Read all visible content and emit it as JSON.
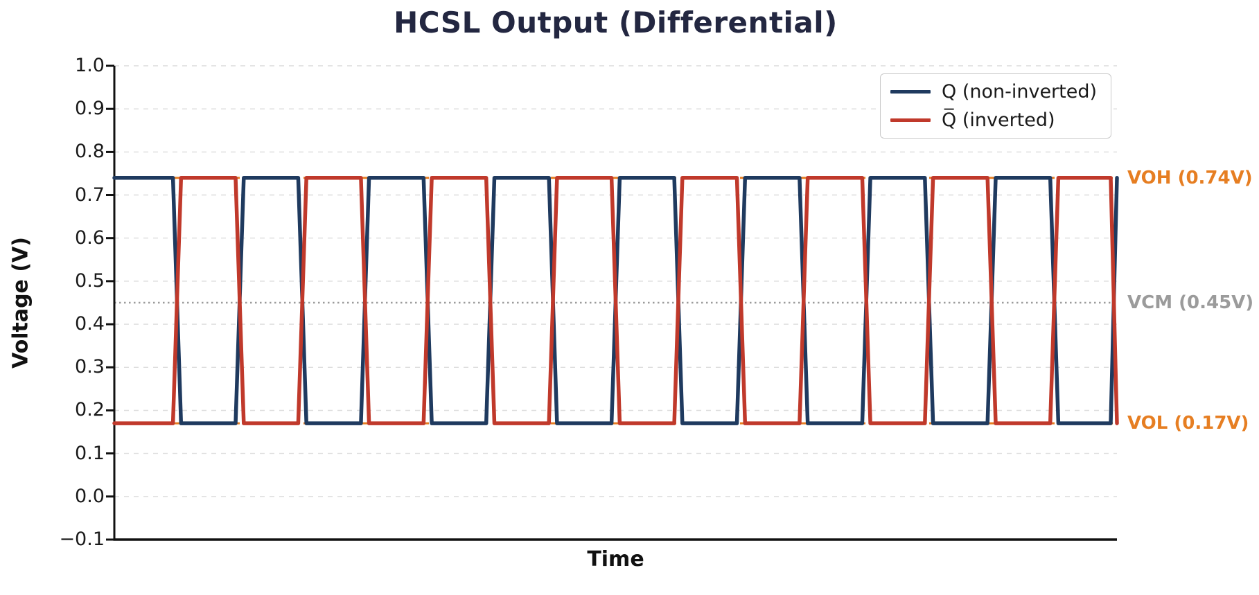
{
  "chart_data": {
    "type": "line",
    "subtype": "differential-square-wave",
    "title": "HCSL Output (Differential)",
    "xlabel": "Time",
    "ylabel": "Voltage (V)",
    "ylim": [
      -0.1,
      1.0
    ],
    "ytick_labels": [
      "1.0",
      "0.9",
      "0.8",
      "0.7",
      "0.6",
      "0.5",
      "0.4",
      "0.3",
      "0.2",
      "0.1",
      "0.0",
      "−0.1"
    ],
    "xticks_shown": false,
    "grid": {
      "horizontal": true,
      "vertical": false,
      "style": "dashed",
      "color": "#dcdcdc"
    },
    "axis_color": "#111111",
    "title_color": "#232741",
    "background_color": "#ffffff",
    "waveform": {
      "voh_volts": 0.74,
      "vol_volts": 0.17,
      "vcm_volts": 0.45,
      "half_cycles": 16,
      "transition_fraction_of_half_cycle": 0.13
    },
    "series": [
      {
        "name": "Q (non-inverted)",
        "color": "#1f3a5f",
        "starts": "high",
        "half_cycle_levels": [
          0.74,
          0.17,
          0.74,
          0.17,
          0.74,
          0.17,
          0.74,
          0.17,
          0.74,
          0.17,
          0.74,
          0.17,
          0.74,
          0.17,
          0.74,
          0.17
        ]
      },
      {
        "name": "Q̅ (inverted)",
        "color": "#c0392b",
        "starts": "low",
        "half_cycle_levels": [
          0.17,
          0.74,
          0.17,
          0.74,
          0.17,
          0.74,
          0.17,
          0.74,
          0.17,
          0.74,
          0.17,
          0.74,
          0.17,
          0.74,
          0.17,
          0.74
        ]
      }
    ],
    "reference_lines": [
      {
        "label": "VOH (0.74V)",
        "value": 0.74,
        "color": "#e67e22",
        "style": "dashed"
      },
      {
        "label": "VCM (0.45V)",
        "value": 0.45,
        "color": "#9b9b9b",
        "style": "dotted"
      },
      {
        "label": "VOL (0.17V)",
        "value": 0.17,
        "color": "#e67e22",
        "style": "dashed"
      }
    ],
    "legend": {
      "position": "upper-right",
      "items": [
        {
          "label": "Q (non-inverted)",
          "color": "#1f3a5f"
        },
        {
          "label": "Q̅ (inverted)",
          "color": "#c0392b"
        }
      ]
    }
  }
}
